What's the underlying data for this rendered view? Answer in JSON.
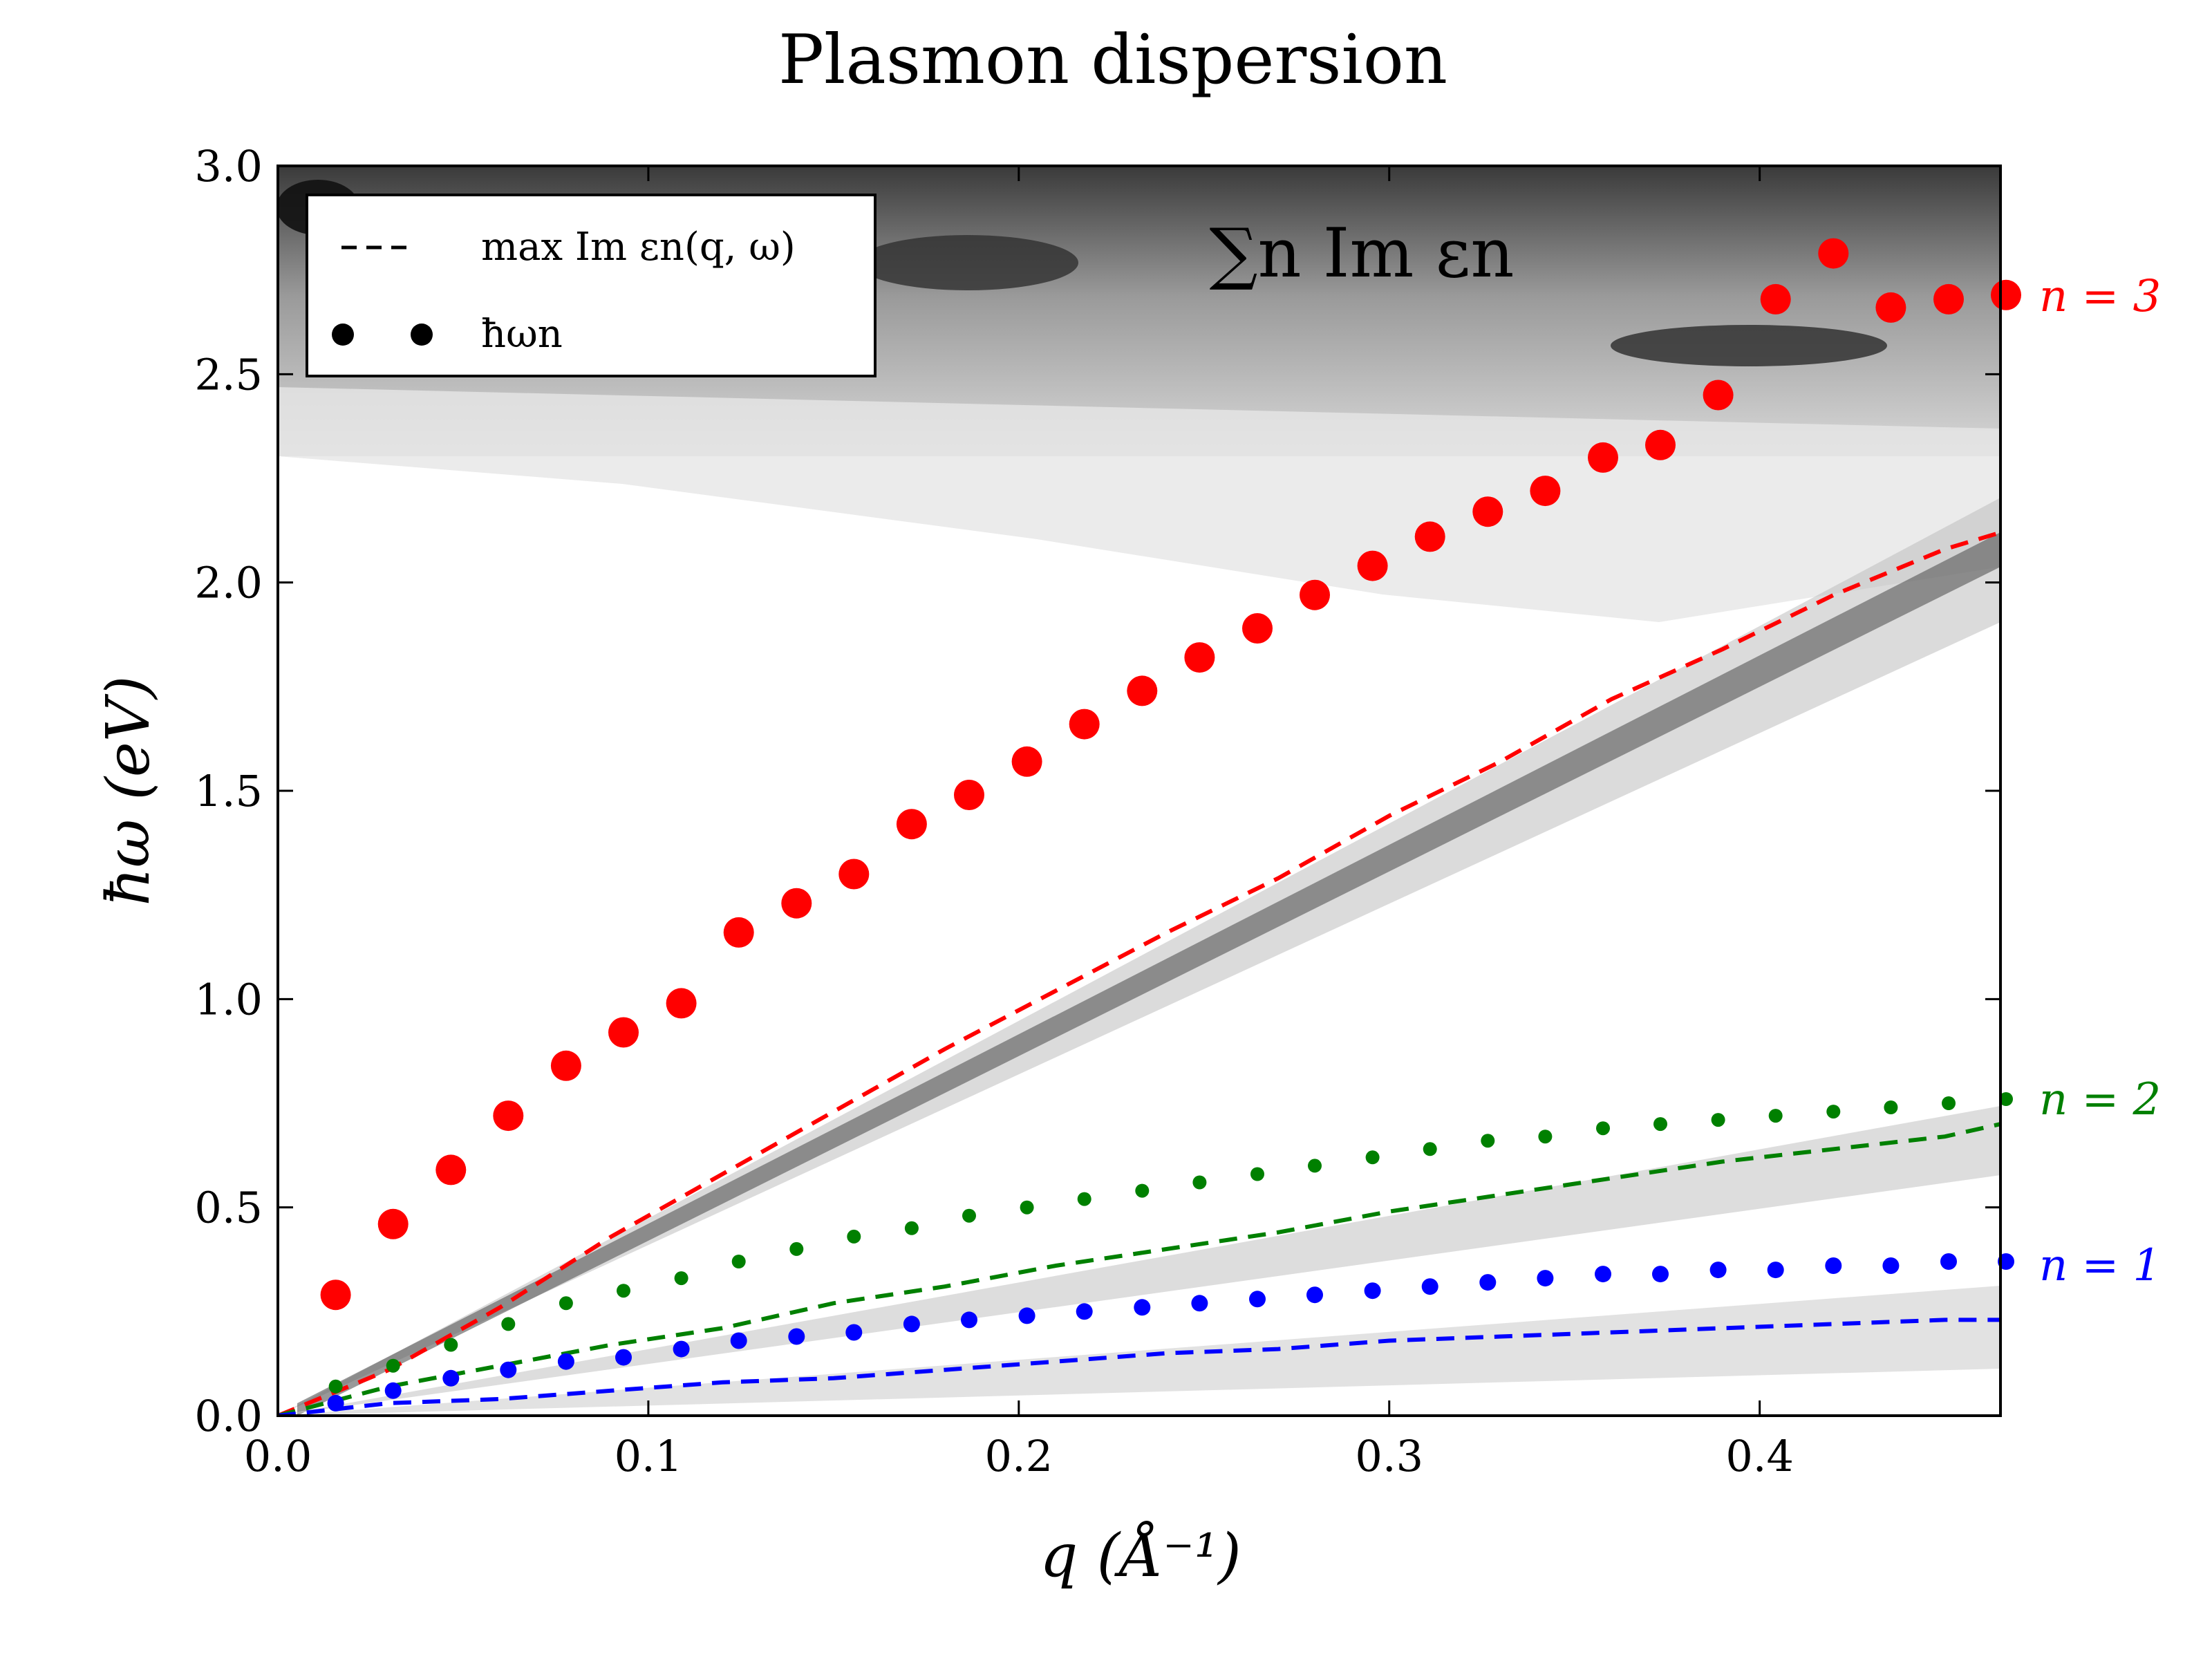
{
  "chart_data": {
    "type": "scatter",
    "title": "Plasmon dispersion",
    "xlabel": "q (Å⁻¹)",
    "ylabel": "ħω (eV)",
    "xlim": [
      0.0,
      0.465
    ],
    "ylim": [
      0.0,
      3.0
    ],
    "xticks": [
      "0.0",
      "0.1",
      "0.2",
      "0.3",
      "0.4"
    ],
    "xtick_values": [
      0.0,
      0.1,
      0.2,
      0.3,
      0.4
    ],
    "yticks": [
      "0.0",
      "0.5",
      "1.0",
      "1.5",
      "2.0",
      "2.5",
      "3.0"
    ],
    "ytick_values": [
      0.0,
      0.5,
      1.0,
      1.5,
      2.0,
      2.5,
      3.0
    ],
    "background": "grayscale filled contour of Σn Im εn",
    "annotation": "∑n Im εn",
    "legend": {
      "position": "top-left",
      "entries": [
        {
          "marker": "dashed-line",
          "label": "max Im εn(q, ω)"
        },
        {
          "marker": "dots",
          "label": "ħωn"
        }
      ]
    },
    "series": [
      {
        "name": "n = 3",
        "color": "#ff0000",
        "label": "n = 3",
        "dashed_x": [
          0.0,
          0.03,
          0.06,
          0.09,
          0.12,
          0.15,
          0.18,
          0.21,
          0.24,
          0.27,
          0.3,
          0.33,
          0.36,
          0.39,
          0.42,
          0.45,
          0.465
        ],
        "dashed_y": [
          0.0,
          0.11,
          0.26,
          0.43,
          0.58,
          0.73,
          0.88,
          1.02,
          1.16,
          1.29,
          1.44,
          1.57,
          1.72,
          1.84,
          1.97,
          2.08,
          2.12
        ],
        "dots_x": [
          0.0156,
          0.0311,
          0.0467,
          0.0622,
          0.0778,
          0.0933,
          0.1089,
          0.1244,
          0.14,
          0.1555,
          0.1711,
          0.1866,
          0.2022,
          0.2177,
          0.2333,
          0.2488,
          0.2644,
          0.2799,
          0.2955,
          0.311,
          0.3266,
          0.3421,
          0.3577,
          0.3732,
          0.3888,
          0.4043,
          0.4199,
          0.4354,
          0.451,
          0.4665
        ],
        "dots_y": [
          0.29,
          0.46,
          0.59,
          0.72,
          0.84,
          0.92,
          0.99,
          1.16,
          1.23,
          1.3,
          1.42,
          1.49,
          1.57,
          1.66,
          1.74,
          1.82,
          1.89,
          1.97,
          2.04,
          2.11,
          2.17,
          2.22,
          2.3,
          2.33,
          2.45,
          2.68,
          2.79,
          2.66,
          2.68,
          2.69
        ]
      },
      {
        "name": "n = 2",
        "color": "#008000",
        "label": "n = 2",
        "dashed_x": [
          0.0,
          0.03,
          0.06,
          0.09,
          0.12,
          0.15,
          0.18,
          0.21,
          0.24,
          0.27,
          0.3,
          0.33,
          0.36,
          0.39,
          0.42,
          0.45,
          0.465
        ],
        "dashed_y": [
          0.0,
          0.07,
          0.12,
          0.17,
          0.21,
          0.27,
          0.31,
          0.36,
          0.4,
          0.44,
          0.49,
          0.53,
          0.57,
          0.61,
          0.64,
          0.67,
          0.7
        ],
        "dots_x": [
          0.0156,
          0.0311,
          0.0467,
          0.0622,
          0.0778,
          0.0933,
          0.1089,
          0.1244,
          0.14,
          0.1555,
          0.1711,
          0.1866,
          0.2022,
          0.2177,
          0.2333,
          0.2488,
          0.2644,
          0.2799,
          0.2955,
          0.311,
          0.3266,
          0.3421,
          0.3577,
          0.3732,
          0.3888,
          0.4043,
          0.4199,
          0.4354,
          0.451,
          0.4665
        ],
        "dots_y": [
          0.07,
          0.12,
          0.17,
          0.22,
          0.27,
          0.3,
          0.33,
          0.37,
          0.4,
          0.43,
          0.45,
          0.48,
          0.5,
          0.52,
          0.54,
          0.56,
          0.58,
          0.6,
          0.62,
          0.64,
          0.66,
          0.67,
          0.69,
          0.7,
          0.71,
          0.72,
          0.73,
          0.74,
          0.75,
          0.76
        ]
      },
      {
        "name": "n = 1",
        "color": "#0000ff",
        "label": "n = 1",
        "dashed_x": [
          0.0,
          0.03,
          0.06,
          0.09,
          0.12,
          0.15,
          0.18,
          0.21,
          0.24,
          0.27,
          0.3,
          0.33,
          0.36,
          0.39,
          0.42,
          0.45,
          0.465
        ],
        "dashed_y": [
          0.0,
          0.03,
          0.04,
          0.06,
          0.08,
          0.09,
          0.11,
          0.13,
          0.15,
          0.16,
          0.18,
          0.19,
          0.2,
          0.21,
          0.22,
          0.23,
          0.23
        ],
        "dots_x": [
          0.0156,
          0.0311,
          0.0467,
          0.0622,
          0.0778,
          0.0933,
          0.1089,
          0.1244,
          0.14,
          0.1555,
          0.1711,
          0.1866,
          0.2022,
          0.2177,
          0.2333,
          0.2488,
          0.2644,
          0.2799,
          0.2955,
          0.311,
          0.3266,
          0.3421,
          0.3577,
          0.3732,
          0.3888,
          0.4043,
          0.4199,
          0.4354,
          0.451,
          0.4665
        ],
        "dots_y": [
          0.03,
          0.06,
          0.09,
          0.11,
          0.13,
          0.14,
          0.16,
          0.18,
          0.19,
          0.2,
          0.22,
          0.23,
          0.24,
          0.25,
          0.26,
          0.27,
          0.28,
          0.29,
          0.3,
          0.31,
          0.32,
          0.33,
          0.34,
          0.34,
          0.35,
          0.35,
          0.36,
          0.36,
          0.37,
          0.37
        ]
      }
    ]
  }
}
